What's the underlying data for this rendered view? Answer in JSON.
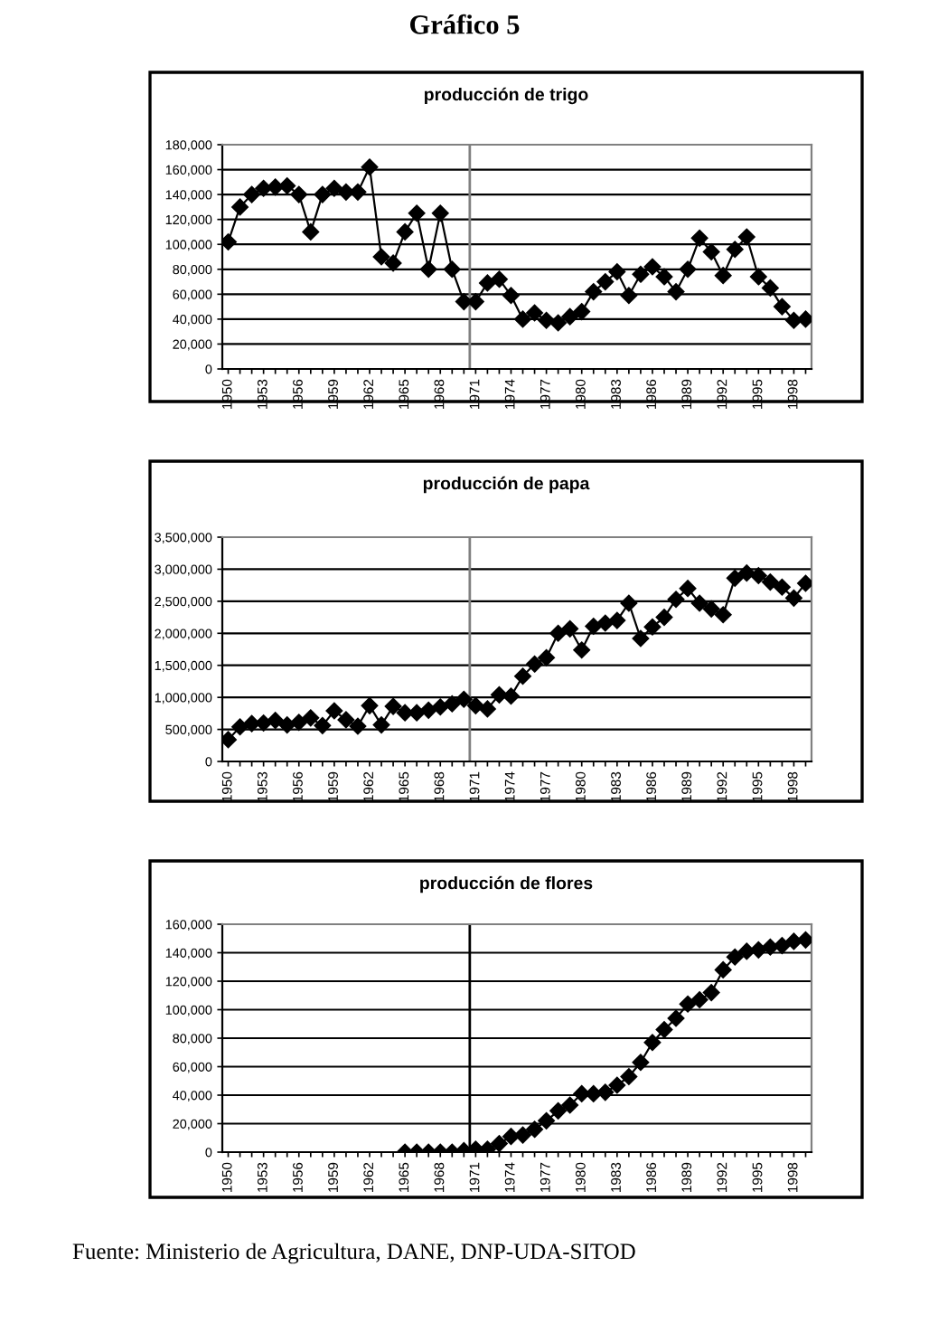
{
  "chart_data": [
    {
      "type": "line",
      "title": "producción de trigo",
      "categories": [
        "1950",
        null,
        null,
        "1953",
        null,
        null,
        "1956",
        null,
        null,
        "1959",
        null,
        null,
        "1962",
        null,
        null,
        "1965",
        null,
        null,
        "1968",
        null,
        null,
        "1971",
        null,
        null,
        "1974",
        null,
        null,
        "1977",
        null,
        null,
        "1980",
        null,
        null,
        "1983",
        null,
        null,
        "1986",
        null,
        null,
        "1989",
        null,
        null,
        "1992",
        null,
        null,
        "1995",
        null,
        null,
        "1998",
        null
      ],
      "series": [
        {
          "color": "#000000",
          "values": [
            102000,
            130000,
            140000,
            145000,
            146000,
            147000,
            140000,
            110000,
            140000,
            145000,
            142000,
            142000,
            162000,
            90000,
            85000,
            110000,
            125000,
            80000,
            125000,
            80000,
            54000,
            54000,
            69000,
            72000,
            59000,
            40000,
            45000,
            39000,
            37000,
            42000,
            46000,
            62000,
            70000,
            78000,
            59000,
            76000,
            82000,
            74000,
            62000,
            80000,
            105000,
            94000,
            75000,
            96000,
            106000,
            74000,
            65000,
            50000,
            39000,
            40000
          ]
        }
      ],
      "ylim": [
        0,
        180000
      ],
      "yticks": [
        {
          "value": 0,
          "label": "0"
        },
        {
          "value": 20000,
          "label": "20,000"
        },
        {
          "value": 40000,
          "label": "40,000"
        },
        {
          "value": 60000,
          "label": "60,000"
        },
        {
          "value": 80000,
          "label": "80,000"
        },
        {
          "value": 100000,
          "label": "100,000"
        },
        {
          "value": 120000,
          "label": "120,000"
        },
        {
          "value": 140000,
          "label": "140,000"
        },
        {
          "value": 160000,
          "label": "160,000"
        },
        {
          "value": 180000,
          "label": "180,000"
        }
      ],
      "grid": "y",
      "marker": "diamond",
      "line_style": "solid",
      "ref_lines": [
        {
          "axis": "x",
          "value": "1971",
          "color": "#808080"
        }
      ],
      "annotations": [
        "Gráfico 5"
      ]
    },
    {
      "type": "line",
      "title": "producción de papa",
      "categories": [
        "1950",
        null,
        null,
        "1953",
        null,
        null,
        "1956",
        null,
        null,
        "1959",
        null,
        null,
        "1962",
        null,
        null,
        "1965",
        null,
        null,
        "1968",
        null,
        null,
        "1971",
        null,
        null,
        "1974",
        null,
        null,
        "1977",
        null,
        null,
        "1980",
        null,
        null,
        "1983",
        null,
        null,
        "1986",
        null,
        null,
        "1989",
        null,
        null,
        "1992",
        null,
        null,
        "1995",
        null,
        null,
        "1998",
        null
      ],
      "series": [
        {
          "color": "#000000",
          "values": [
            340000,
            540000,
            590000,
            600000,
            640000,
            570000,
            610000,
            680000,
            560000,
            790000,
            650000,
            550000,
            870000,
            570000,
            860000,
            760000,
            760000,
            800000,
            850000,
            900000,
            970000,
            870000,
            820000,
            1040000,
            1020000,
            1330000,
            1520000,
            1620000,
            2000000,
            2070000,
            1740000,
            2110000,
            2160000,
            2200000,
            2470000,
            1920000,
            2100000,
            2250000,
            2530000,
            2700000,
            2470000,
            2380000,
            2290000,
            2860000,
            2940000,
            2900000,
            2800000,
            2720000,
            2550000,
            2780000
          ]
        }
      ],
      "ylim": [
        0,
        3500000
      ],
      "yticks": [
        {
          "value": 0,
          "label": "0"
        },
        {
          "value": 500000,
          "label": "500,000"
        },
        {
          "value": 1000000,
          "label": "1,000,000"
        },
        {
          "value": 1500000,
          "label": "1,500,000"
        },
        {
          "value": 2000000,
          "label": "2,000,000"
        },
        {
          "value": 2500000,
          "label": "2,500,000"
        },
        {
          "value": 3000000,
          "label": "3,000,000"
        },
        {
          "value": 3500000,
          "label": "3,500,000"
        }
      ],
      "grid": "y",
      "marker": "diamond",
      "line_style": "solid",
      "ref_lines": [
        {
          "axis": "x",
          "value": "1971",
          "color": "#808080"
        }
      ]
    },
    {
      "type": "line",
      "title": "producción de flores",
      "categories": [
        "1950",
        null,
        null,
        "1953",
        null,
        null,
        "1956",
        null,
        null,
        "1959",
        null,
        null,
        "1962",
        null,
        null,
        "1965",
        null,
        null,
        "1968",
        null,
        null,
        "1971",
        null,
        null,
        "1974",
        null,
        null,
        "1977",
        null,
        null,
        "1980",
        null,
        null,
        "1983",
        null,
        null,
        "1986",
        null,
        null,
        "1989",
        null,
        null,
        "1992",
        null,
        null,
        "1995",
        null,
        null,
        "1998",
        null
      ],
      "series": [
        {
          "color": "#000000",
          "values": [
            null,
            null,
            null,
            null,
            null,
            null,
            null,
            null,
            null,
            null,
            null,
            null,
            null,
            null,
            null,
            0,
            0,
            0,
            0,
            0,
            1000,
            2000,
            2000,
            6000,
            11000,
            12000,
            16000,
            22000,
            29000,
            33000,
            41000,
            41000,
            42000,
            47000,
            53000,
            63000,
            77000,
            86000,
            94000,
            104000,
            107000,
            112000,
            128000,
            137000,
            141000,
            142000,
            144000,
            145000,
            148000,
            149000
          ]
        }
      ],
      "ylim": [
        0,
        160000
      ],
      "yticks": [
        {
          "value": 0,
          "label": "0"
        },
        {
          "value": 20000,
          "label": "20,000"
        },
        {
          "value": 40000,
          "label": "40,000"
        },
        {
          "value": 60000,
          "label": "60,000"
        },
        {
          "value": 80000,
          "label": "80,000"
        },
        {
          "value": 100000,
          "label": "100,000"
        },
        {
          "value": 120000,
          "label": "120,000"
        },
        {
          "value": 140000,
          "label": "140,000"
        },
        {
          "value": 160000,
          "label": "160,000"
        }
      ],
      "grid": "y",
      "marker": "diamond",
      "line_style": "solid",
      "ref_lines": [
        {
          "axis": "x",
          "value": "1971",
          "color": "#000000"
        }
      ],
      "annotations": [
        "Fuente: Ministerio de Agricultura, DANE, DNP-UDA-SITOD"
      ]
    }
  ]
}
